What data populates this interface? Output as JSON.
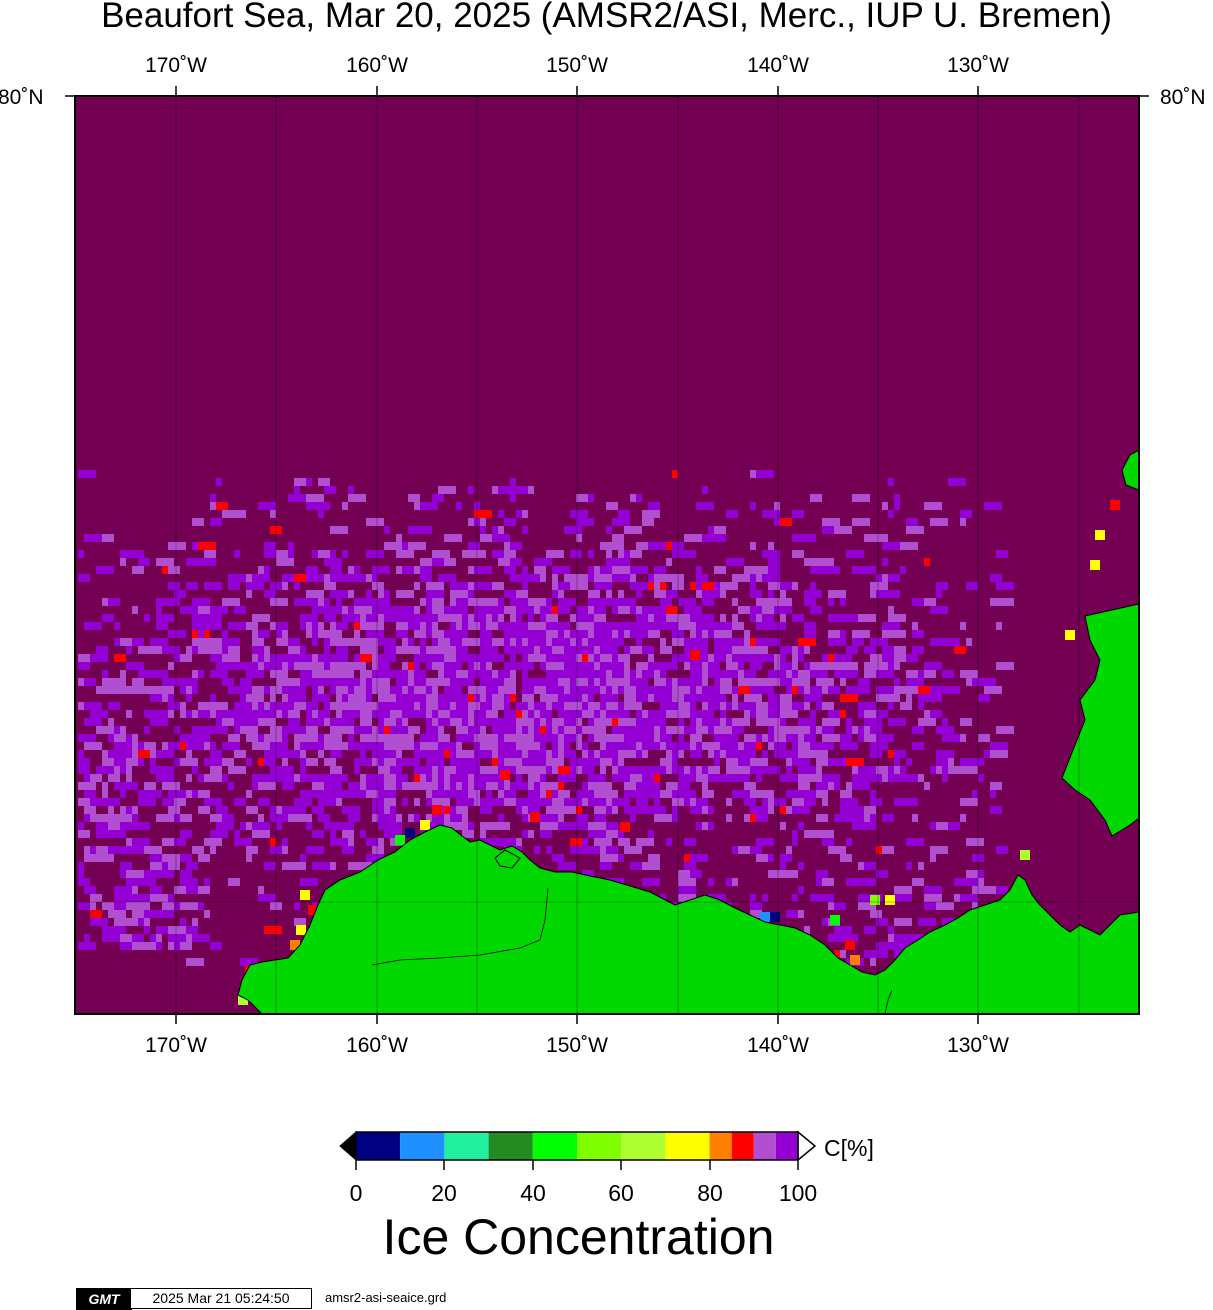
{
  "title": "Beaufort Sea, Mar 20, 2025 (AMSR2/ASI, Merc., IUP U. Bremen)",
  "longitude_labels": [
    "170˚W",
    "160˚W",
    "150˚W",
    "140˚W",
    "130˚W"
  ],
  "latitude_label": "80˚N",
  "colorbar": {
    "ticks": [
      "0",
      "20",
      "40",
      "60",
      "80",
      "100"
    ],
    "unit": "C[%]",
    "title": "Ice Concentration",
    "colors": [
      "#000080",
      "#1e90ff",
      "#20f0a0",
      "#228b22",
      "#00ff00",
      "#7fff00",
      "#adff2f",
      "#ffff00",
      "#ff8000",
      "#ff0000",
      "#b050d0",
      "#9400d3"
    ]
  },
  "colors": {
    "ice_full": "#730052",
    "land": "#00d800",
    "ice_high": "#9400d3",
    "ice_mid": "#b050d0"
  },
  "footer": {
    "logo": "GMT",
    "timestamp": "2025 Mar 21 05:24:50",
    "file": "amsr2-asi-seaice.grd"
  }
}
